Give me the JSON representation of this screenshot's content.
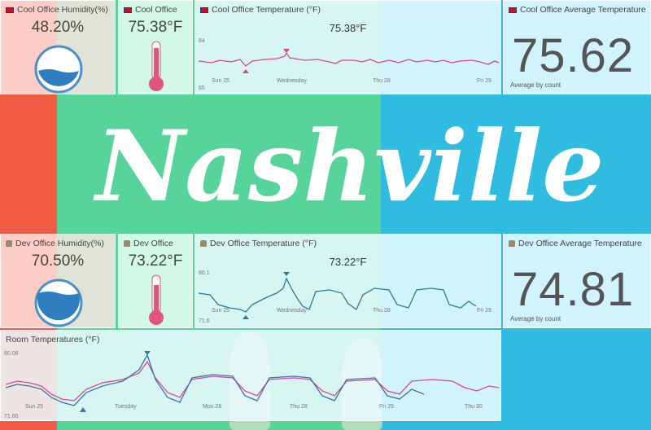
{
  "background": {
    "mural_text": "Nashville",
    "colors": {
      "red": "#f15a43",
      "green": "#56d49a",
      "blue": "#2fbce0"
    }
  },
  "widgets": {
    "cool_humidity": {
      "title": "Cool Office Humidity(%)",
      "icon": "uk-flag-icon",
      "value": "48.20%",
      "level": 0.48
    },
    "cool_thermo": {
      "title": "Cool Office",
      "icon": "uk-flag-icon",
      "value": "75.38°F"
    },
    "cool_temp_chart": {
      "title": "Cool Office Temperature (°F)",
      "icon": "uk-flag-icon",
      "value": "75.38°F",
      "y_max": "84",
      "y_min": "65",
      "x_ticks": [
        "Sun 25",
        "Wednesday",
        "Thu 28",
        "Fri 29"
      ]
    },
    "cool_avg": {
      "title": "Cool Office Average Temperature",
      "icon": "uk-flag-icon",
      "value": "75.62",
      "sub": "Average by count"
    },
    "dev_humidity": {
      "title": "Dev Office Humidity(%)",
      "icon": "office-icon",
      "value": "70.50%",
      "level": 0.705
    },
    "dev_thermo": {
      "title": "Dev Office",
      "icon": "office-icon",
      "value": "73.22°F"
    },
    "dev_temp_chart": {
      "title": "Dev Office Temperature (°F)",
      "icon": "office-icon",
      "value": "73.22°F",
      "y_max": "80.1",
      "y_min": "71.6",
      "x_ticks": [
        "Sun 25",
        "Wednesday",
        "Thu 28",
        "Fri 29"
      ]
    },
    "dev_avg": {
      "title": "Dev Office Average Temperature",
      "icon": "office-icon",
      "value": "74.81",
      "sub": "Average by count"
    },
    "room_chart": {
      "title": "Room Temperatures (°F)",
      "y_max": "80.06",
      "y_min": "71.60",
      "x_ticks": [
        "Sun 25",
        "Tuesday",
        "Mon 26",
        "Thu 28",
        "Fri 29",
        "Thu 30"
      ],
      "series_colors": {
        "cool": "#e0458f",
        "dev": "#3a73a8"
      }
    }
  }
}
